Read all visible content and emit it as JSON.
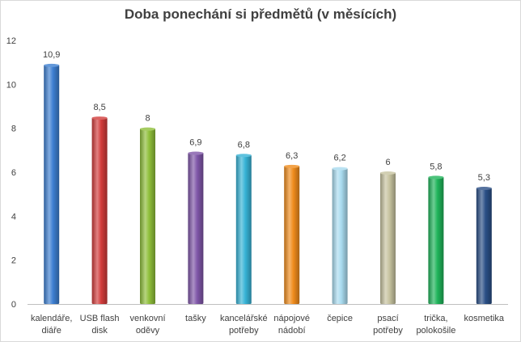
{
  "chart_data": {
    "type": "bar",
    "title": "Doba ponechání si předmětů (v měsících)",
    "xlabel": "",
    "ylabel": "",
    "ylim": [
      0,
      12
    ],
    "yticks": [
      0,
      2,
      4,
      6,
      8,
      10,
      12
    ],
    "grid": false,
    "categories": [
      [
        "kalendáře,",
        "diáře"
      ],
      [
        "USB flash",
        "disk"
      ],
      [
        "venkovní",
        "oděvy"
      ],
      [
        "tašky"
      ],
      [
        "kancelářské",
        "potřeby"
      ],
      [
        "nápojové",
        "nádobí"
      ],
      [
        "čepice"
      ],
      [
        "psací",
        "potřeby"
      ],
      [
        "trička,",
        "polokošile"
      ],
      [
        "kosmetika"
      ]
    ],
    "values": [
      10.9,
      8.5,
      8,
      6.9,
      6.8,
      6.3,
      6.2,
      6,
      5.8,
      5.3
    ],
    "value_labels": [
      "10,9",
      "8,5",
      "8",
      "6,9",
      "6,8",
      "6,3",
      "6,2",
      "6",
      "5,8",
      "5,3"
    ],
    "colors": [
      "#3d7fd1",
      "#d23c3b",
      "#8fbf3a",
      "#7f56a8",
      "#37b3d6",
      "#f08c1c",
      "#a9dbef",
      "#c7c3a0",
      "#1fb45a",
      "#2a4f86"
    ]
  }
}
